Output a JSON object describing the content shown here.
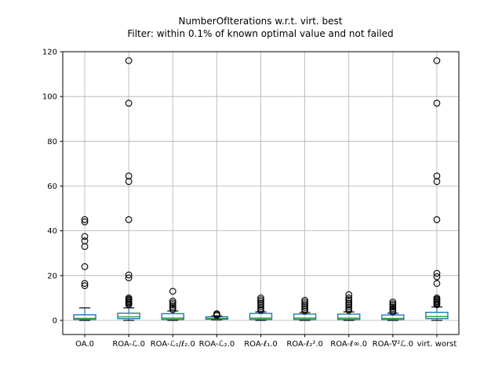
{
  "figure": {
    "title": "NumberOfIterations w.r.t. virt. best",
    "subtitle": "Filter: within 0.1% of known optimal value and not failed"
  },
  "chart_data": {
    "type": "boxplot",
    "title": "NumberOfIterations w.r.t. virt. best",
    "subtitle": "Filter: within 0.1% of known optimal value and not failed",
    "xlabel": "",
    "ylabel": "",
    "ylim": [
      -6.3,
      120
    ],
    "yticks": [
      0,
      20,
      40,
      60,
      80,
      100,
      120
    ],
    "grid": true,
    "legend": "none",
    "categories": [
      "OA.0",
      "ROA-ℒ.0",
      "ROA-ℒ₁/ℓ₂.0",
      "ROA-ℒ₂.0",
      "ROA-ℓ₁.0",
      "ROA-ℓ₂².0",
      "ROA-ℓ∞.0",
      "ROA-∇²ℒ.0",
      "virt. worst"
    ],
    "boxes": [
      {
        "label": "OA.0",
        "whislo": 0,
        "q1": 0.4,
        "med": 0.9,
        "q3": 2.5,
        "whishi": 5.6,
        "fliers": [
          15.5,
          16.5,
          24,
          33,
          35.5,
          37.5,
          44,
          45
        ]
      },
      {
        "label": "ROA-ℒ.0",
        "whislo": 0,
        "q1": 0.8,
        "med": 1.6,
        "q3": 3.2,
        "whishi": 5.6,
        "fliers": [
          7,
          7.5,
          8,
          8.5,
          9,
          9.5,
          10,
          19,
          20.3,
          45,
          62,
          64.5,
          97,
          116
        ]
      },
      {
        "label": "ROA-ℒ₁/ℓ₂.0",
        "whislo": 0,
        "q1": 0.4,
        "med": 1.0,
        "q3": 3.0,
        "whishi": 4.2,
        "fliers": [
          4.8,
          5.5,
          6.2,
          7,
          7.8,
          8.6,
          13
        ]
      },
      {
        "label": "ROA-ℒ₂.0",
        "whislo": 0.2,
        "q1": 0.5,
        "med": 0.9,
        "q3": 1.6,
        "whishi": 2.0,
        "fliers": [
          2.2,
          2.6,
          3.0
        ]
      },
      {
        "label": "ROA-ℓ₁.0",
        "whislo": 0,
        "q1": 0.4,
        "med": 1.0,
        "q3": 3.1,
        "whishi": 3.8,
        "fliers": [
          4.5,
          5.2,
          6,
          6.8,
          7.6,
          8.4,
          9.2,
          10
        ]
      },
      {
        "label": "ROA-ℓ₂².0",
        "whislo": 0,
        "q1": 0.4,
        "med": 1.0,
        "q3": 2.8,
        "whishi": 3.5,
        "fliers": [
          4.2,
          5,
          5.8,
          6.6,
          7.4,
          8.2,
          9
        ]
      },
      {
        "label": "ROA-ℓ∞.0",
        "whislo": 0,
        "q1": 0.4,
        "med": 1.0,
        "q3": 2.8,
        "whishi": 3.8,
        "fliers": [
          4.5,
          5.2,
          6,
          6.8,
          7.6,
          8.4,
          9.2,
          10,
          11.5
        ]
      },
      {
        "label": "ROA-∇²ℒ.0",
        "whislo": 0,
        "q1": 0.4,
        "med": 0.9,
        "q3": 2.4,
        "whishi": 3.2,
        "fliers": [
          3.8,
          4.5,
          5.2,
          6,
          6.7,
          7.4,
          8.2
        ]
      },
      {
        "label": "virt. worst",
        "whislo": 0,
        "q1": 0.8,
        "med": 1.7,
        "q3": 3.6,
        "whishi": 6.0,
        "fliers": [
          7,
          7.5,
          8,
          8.5,
          9,
          9.5,
          10,
          16.5,
          19.5,
          21,
          45,
          62,
          64.5,
          97,
          116
        ]
      }
    ],
    "colors": {
      "box": "#1f77b4",
      "whisker": "#1f77b4",
      "median": "#2ca02c",
      "cap": "#000000",
      "flier": "#000000",
      "grid": "#b0b0b0",
      "spine": "#000000",
      "text": "#000000",
      "background": "#ffffff"
    }
  }
}
